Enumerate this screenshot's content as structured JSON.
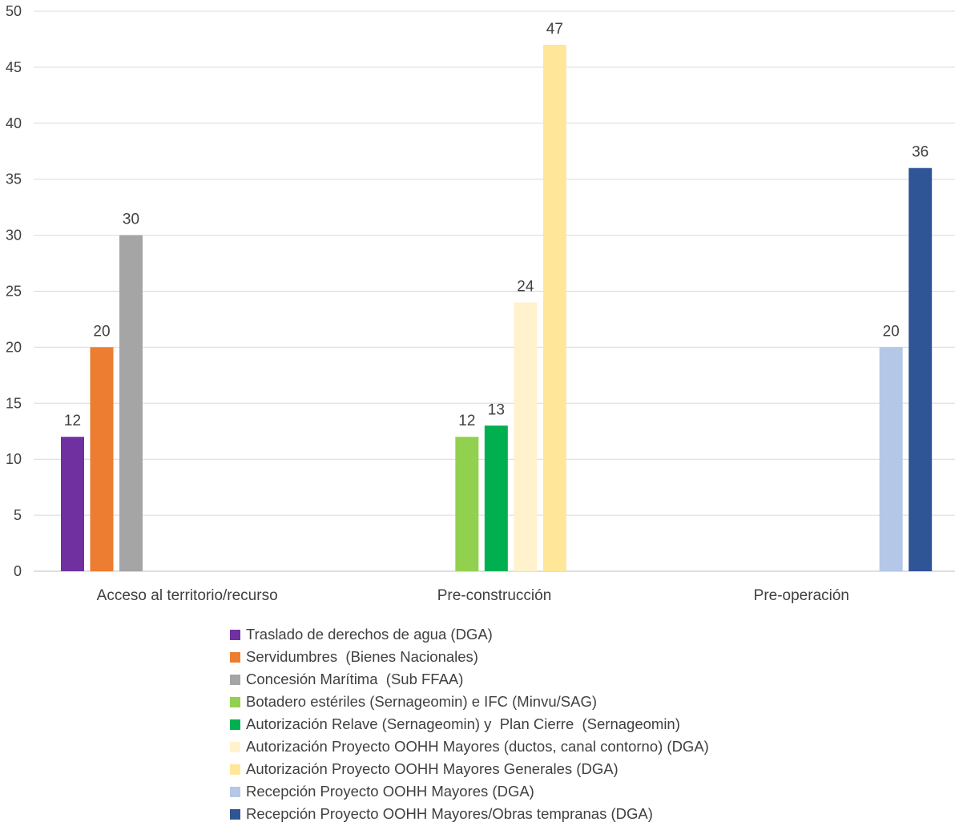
{
  "chart_data": {
    "type": "bar",
    "title": "",
    "xlabel": "",
    "ylabel": "",
    "ylim": [
      0,
      50
    ],
    "ytick_step": 5,
    "grid": true,
    "legend_position": "bottom",
    "categories": [
      "Acceso al territorio/recurso",
      "Pre-construcción",
      "Pre-operación"
    ],
    "series": [
      {
        "name": "Traslado de derechos de agua (DGA)",
        "color": "#7030A0",
        "values": [
          12,
          null,
          null
        ]
      },
      {
        "name": "Servidumbres  (Bienes Nacionales)",
        "color": "#ED7D31",
        "values": [
          20,
          null,
          null
        ]
      },
      {
        "name": "Concesión Marítima  (Sub FFAA)",
        "color": "#A5A5A5",
        "values": [
          30,
          null,
          null
        ]
      },
      {
        "name": "Botadero estériles (Sernageomin) e IFC (Minvu/SAG)",
        "color": "#92D050",
        "values": [
          null,
          12,
          null
        ]
      },
      {
        "name": "Autorización Relave (Sernageomin) y  Plan Cierre  (Sernageomin)",
        "color": "#00B050",
        "values": [
          null,
          13,
          null
        ]
      },
      {
        "name": "Autorización Proyecto OOHH Mayores (ductos, canal contorno) (DGA)",
        "color": "#FFF2CC",
        "values": [
          null,
          24,
          null
        ]
      },
      {
        "name": "Autorización Proyecto OOHH Mayores Generales (DGA)",
        "color": "#FFE699",
        "values": [
          null,
          47,
          null
        ]
      },
      {
        "name": "Recepción Proyecto OOHH Mayores (DGA)",
        "color": "#B4C7E7",
        "values": [
          null,
          null,
          20
        ]
      },
      {
        "name": "Recepción Proyecto OOHH Mayores/Obras tempranas (DGA)",
        "color": "#2F5597",
        "values": [
          null,
          null,
          36
        ]
      }
    ]
  }
}
